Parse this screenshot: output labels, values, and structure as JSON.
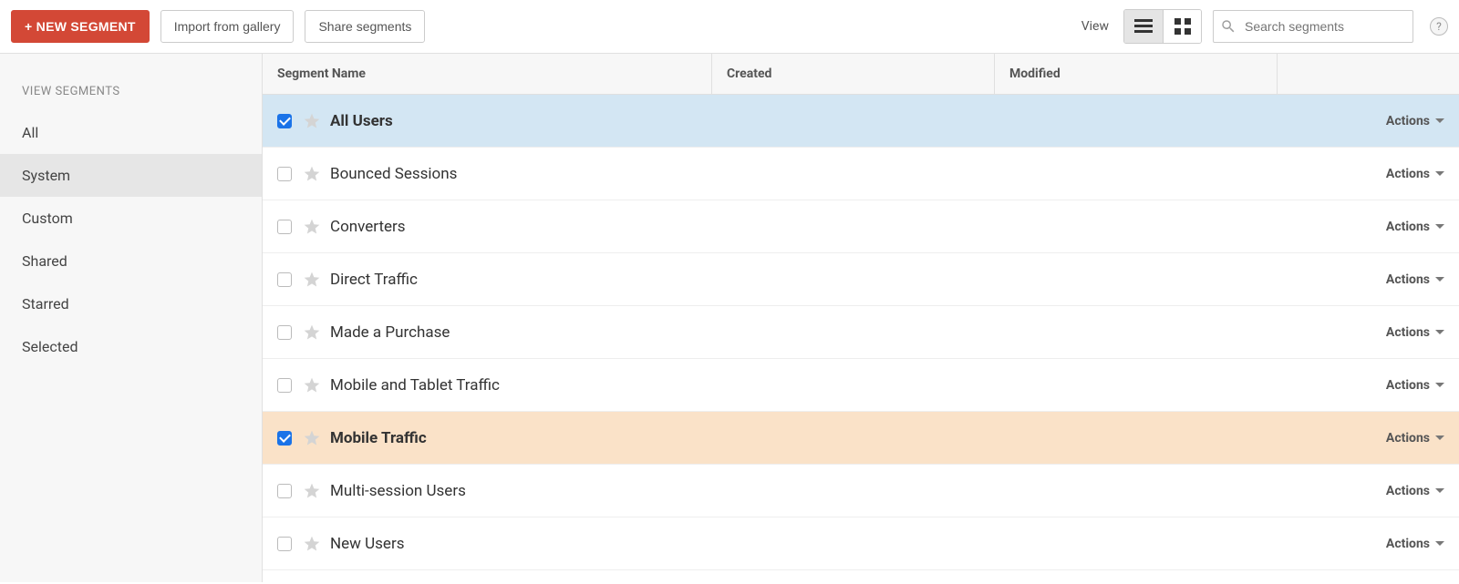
{
  "toolbar": {
    "new_segment_label": "+ NEW SEGMENT",
    "import_label": "Import from gallery",
    "share_label": "Share segments",
    "view_label": "View",
    "search_placeholder": "Search segments",
    "help_label": "?"
  },
  "colors": {
    "primary_button": "#d34836",
    "selected_row_blue": "#d3e6f3",
    "selected_row_orange": "#fae2c8",
    "checkbox_checked": "#1a73e8"
  },
  "sidebar": {
    "title": "VIEW SEGMENTS",
    "items": [
      {
        "label": "All",
        "active": false
      },
      {
        "label": "System",
        "active": true
      },
      {
        "label": "Custom",
        "active": false
      },
      {
        "label": "Shared",
        "active": false
      },
      {
        "label": "Starred",
        "active": false
      },
      {
        "label": "Selected",
        "active": false
      }
    ]
  },
  "table": {
    "columns": {
      "segment_name": "Segment Name",
      "created": "Created",
      "modified": "Modified"
    },
    "actions_label": "Actions",
    "rows": [
      {
        "name": "All Users",
        "checked": true,
        "highlight": "blue",
        "created": "",
        "modified": ""
      },
      {
        "name": "Bounced Sessions",
        "checked": false,
        "highlight": "none",
        "created": "",
        "modified": ""
      },
      {
        "name": "Converters",
        "checked": false,
        "highlight": "none",
        "created": "",
        "modified": ""
      },
      {
        "name": "Direct Traffic",
        "checked": false,
        "highlight": "none",
        "created": "",
        "modified": ""
      },
      {
        "name": "Made a Purchase",
        "checked": false,
        "highlight": "none",
        "created": "",
        "modified": ""
      },
      {
        "name": "Mobile and Tablet Traffic",
        "checked": false,
        "highlight": "none",
        "created": "",
        "modified": ""
      },
      {
        "name": "Mobile Traffic",
        "checked": true,
        "highlight": "orange",
        "created": "",
        "modified": ""
      },
      {
        "name": "Multi-session Users",
        "checked": false,
        "highlight": "none",
        "created": "",
        "modified": ""
      },
      {
        "name": "New Users",
        "checked": false,
        "highlight": "none",
        "created": "",
        "modified": ""
      }
    ]
  },
  "view_mode": "list"
}
